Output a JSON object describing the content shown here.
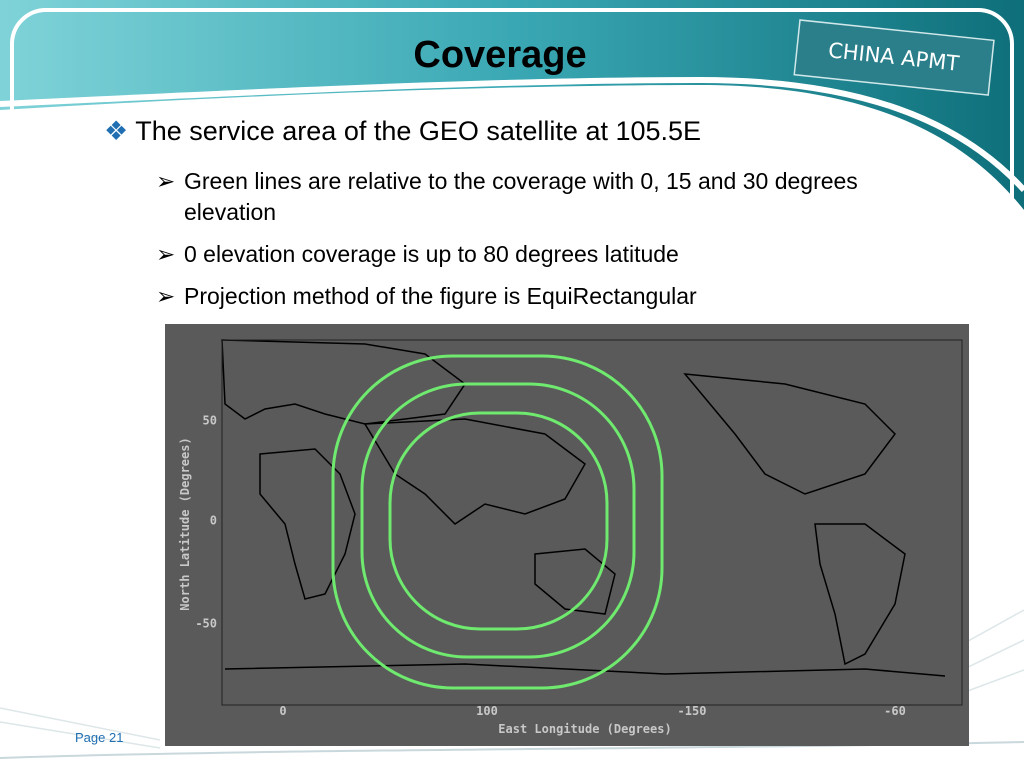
{
  "header": {
    "title": "Coverage",
    "logo": "CHINA APMT"
  },
  "bullets": [
    {
      "marker": "❖",
      "text": "The service area of the GEO satellite at 105.5E",
      "sub": [
        {
          "marker": "➢",
          "text": "Green lines are relative to the coverage with 0, 15 and 30 degrees elevation"
        },
        {
          "marker": "➢",
          "text": "0 elevation coverage is up to 80 degrees latitude"
        },
        {
          "marker": "➢",
          "text": "Projection method of the figure is EquiRectangular"
        }
      ]
    }
  ],
  "figure": {
    "y_axis_label": "North Latitude (Degrees)",
    "x_axis_label": "East Longitude (Degrees)",
    "y_tick_labels": [
      "50",
      "0",
      "-50"
    ],
    "x_tick_labels": [
      "0",
      "100",
      "-150",
      "-60"
    ]
  },
  "footer": {
    "page": "Page 21"
  }
}
